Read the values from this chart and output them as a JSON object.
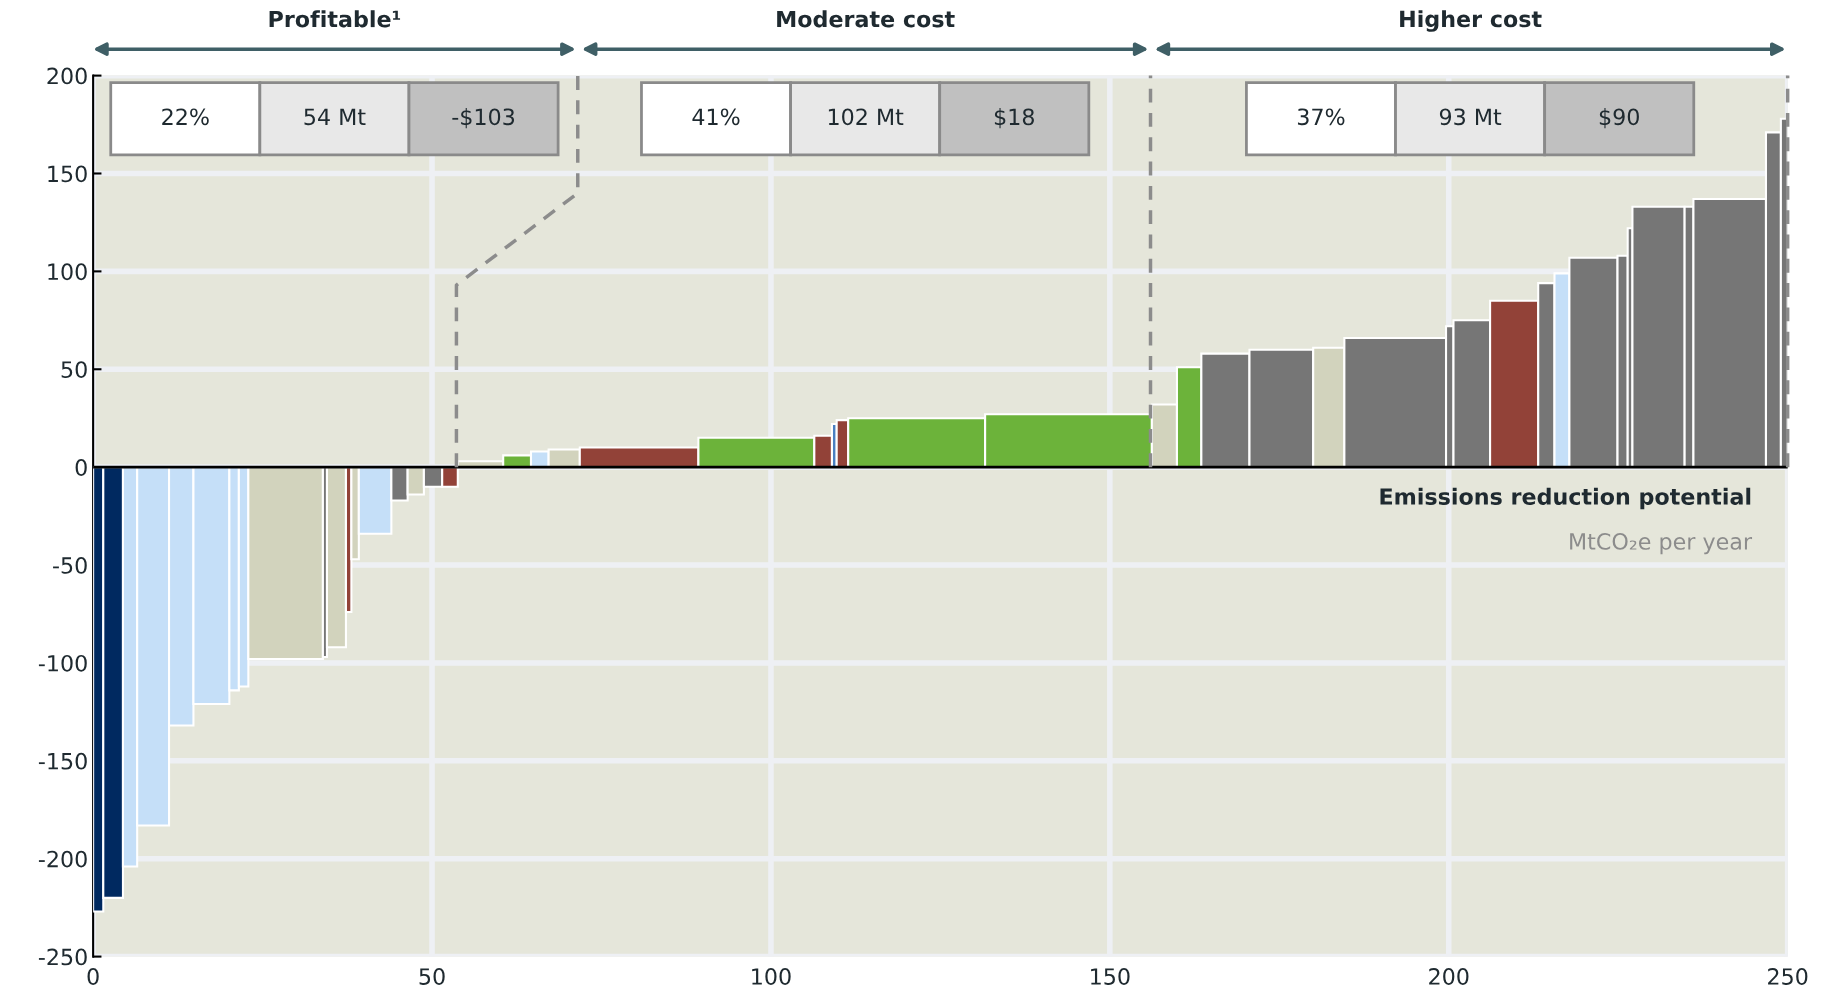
{
  "chart_data": {
    "type": "bar",
    "xlabel": "Emissions reduction potential",
    "annotations": [
      "Profitable¹",
      "22%",
      "54 Mt",
      "-$103",
      "Moderate cost",
      "41%",
      "102 Mt",
      "$18",
      "Higher cost",
      "37%",
      "93 Mt",
      "$90",
      "MtCO₂e per year"
    ],
    "xlim": [
      0,
      250
    ],
    "xticks": [
      0,
      50,
      100,
      150,
      200,
      250
    ],
    "ylim": [
      -250,
      200
    ],
    "yticks": [
      -250,
      -200,
      -150,
      -100,
      -50,
      0,
      50,
      100,
      150,
      200
    ],
    "grid": true,
    "series": [
      {
        "x": [
          0.75,
          2.95,
          5.45,
          8.85,
          13.0,
          17.45,
          20.8,
          22.2,
          28.4,
          34.2,
          35.9,
          37.7,
          38.65,
          41.6,
          45.2,
          47.6,
          50.15,
          52.65,
          57.15,
          62.55,
          65.9,
          69.5,
          80.55,
          97.85,
          107.7,
          109.35,
          110.55,
          121.5,
          143.9,
          158.05,
          161.7,
          167.05,
          175.3,
          182.3,
          192.1,
          200.15,
          203.4,
          209.65,
          214.4,
          216.7,
          221.35,
          225.65,
          226.75,
          230.95,
          235.45,
          241.45,
          247.9,
          249.5
        ],
        "values": [
          -227,
          -220,
          -204,
          -183,
          -132,
          -121,
          -114,
          -112,
          -98,
          -97,
          -92,
          -74,
          -47,
          -34,
          -17,
          -14,
          -10,
          -10,
          3,
          6,
          8,
          9,
          10,
          15,
          16,
          22,
          24,
          25,
          27,
          32,
          51,
          58,
          60,
          61,
          66,
          72,
          75,
          85,
          94,
          99,
          107,
          108,
          122,
          133,
          133,
          137,
          171,
          178
        ],
        "colors": [
          "#002960",
          "#002960",
          "#c5dff8",
          "#c5dff8",
          "#c5dff8",
          "#c5dff8",
          "#c5dff8",
          "#c5dff8",
          "#d2d3bd",
          "#767676",
          "#d2d3bd",
          "#924238",
          "#d2d3bd",
          "#c5dff8",
          "#767676",
          "#d2d3bd",
          "#767676",
          "#924238",
          "#d2d3bd",
          "#6cb33a",
          "#c5dff8",
          "#d2d3bd",
          "#924238",
          "#6cb33a",
          "#924238",
          "#4a7fc1",
          "#924238",
          "#6cb33a",
          "#6cb33a",
          "#d2d3bd",
          "#6cb33a",
          "#767676",
          "#767676",
          "#d2d3bd",
          "#767676",
          "#767676",
          "#767676",
          "#924238",
          "#767676",
          "#c5dff8",
          "#767676",
          "#767676",
          "#767676",
          "#767676",
          "#767676",
          "#767676",
          "#767676",
          "#767676"
        ]
      },
      {
        "type": "line",
        "x": [
          53.6,
          53.6,
          71.5,
          71.5
        ],
        "values": [
          0,
          93,
          140,
          200
        ],
        "color": "#8c8c8c",
        "line_style": "dashed"
      },
      {
        "type": "line",
        "x": [
          156,
          156
        ],
        "values": [
          0,
          200
        ],
        "color": "#8c8c8c",
        "line_style": "dashed"
      },
      {
        "type": "line",
        "x": [
          250,
          250
        ],
        "values": [
          0,
          200
        ],
        "color": "#8c8c8c",
        "line_style": "dashed"
      }
    ],
    "ref_lines": [
      {
        "axis": "y",
        "value": 0,
        "color": "#000000"
      }
    ]
  }
}
